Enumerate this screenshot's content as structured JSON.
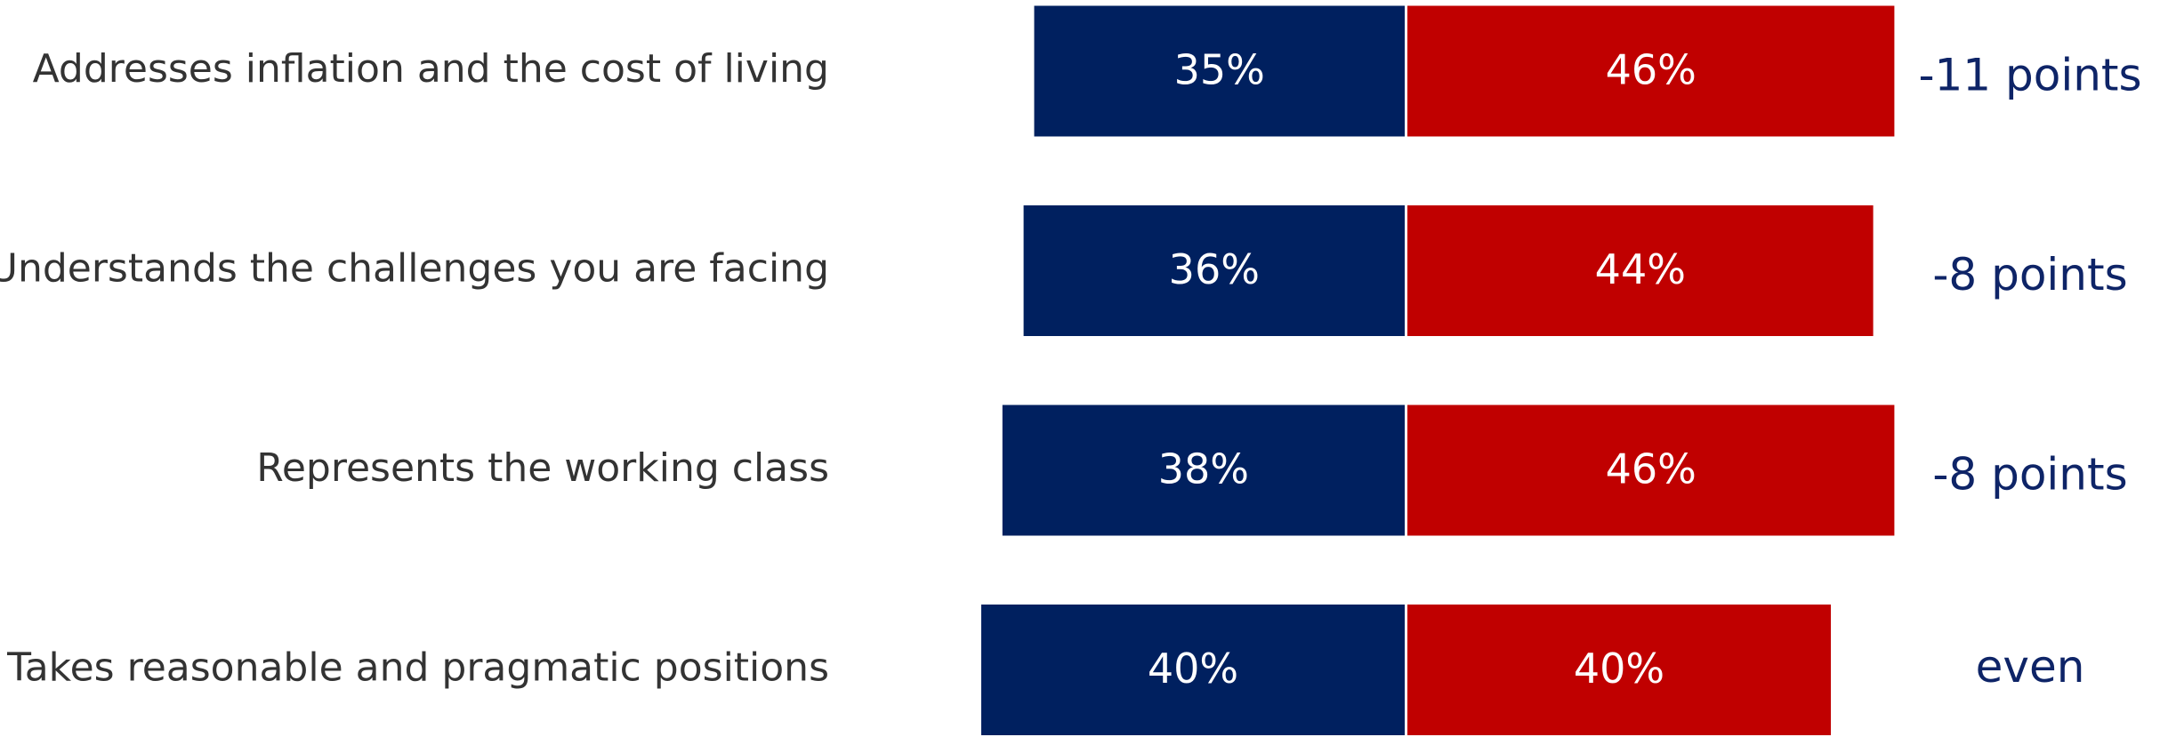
{
  "chart_data": {
    "type": "bar",
    "categories": [
      "Addresses inflation and the cost of living",
      "Understands the challenges you are facing",
      "Represents the working class",
      "Takes reasonable and pragmatic positions"
    ],
    "series": [
      {
        "color": "#00205f",
        "values": [
          35,
          36,
          38,
          40
        ],
        "value_labels": [
          "35%",
          "36%",
          "38%",
          "40%"
        ]
      },
      {
        "color": "#c00000",
        "values": [
          46,
          44,
          46,
          40
        ],
        "value_labels": [
          "46%",
          "44%",
          "46%",
          "40%"
        ]
      }
    ],
    "annotations": [
      "-11 points",
      "-8 points",
      "-8 points",
      "even"
    ]
  }
}
